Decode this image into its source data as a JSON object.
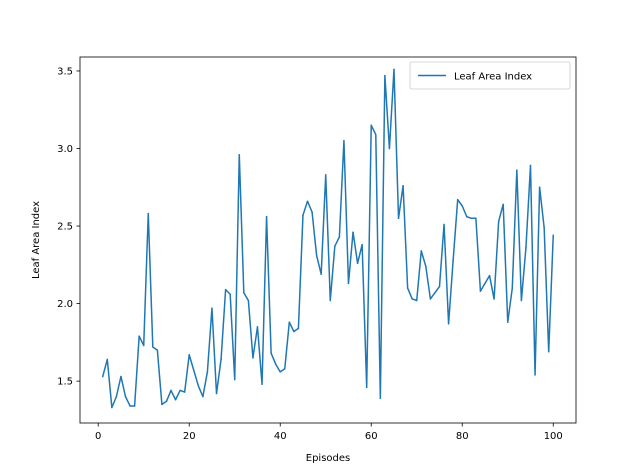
{
  "chart_data": {
    "type": "line",
    "title": "",
    "xlabel": "Episodes",
    "ylabel": "Leaf Area Index",
    "xlim": [
      -4,
      105
    ],
    "ylim": [
      1.23,
      3.59
    ],
    "xticks": [
      0,
      20,
      40,
      60,
      80,
      100
    ],
    "yticks": [
      1.5,
      2.0,
      2.5,
      3.0,
      3.5
    ],
    "xtick_labels": [
      "0",
      "20",
      "40",
      "60",
      "80",
      "100"
    ],
    "ytick_labels": [
      "1.5",
      "2.0",
      "2.5",
      "3.0",
      "3.5"
    ],
    "grid": false,
    "legend_position": "top-right",
    "series": [
      {
        "name": "Leaf Area Index",
        "color": "#1f77b4",
        "x": [
          1,
          2,
          3,
          4,
          5,
          6,
          7,
          8,
          9,
          10,
          11,
          12,
          13,
          14,
          15,
          16,
          17,
          18,
          19,
          20,
          21,
          22,
          23,
          24,
          25,
          26,
          27,
          28,
          29,
          30,
          31,
          32,
          33,
          34,
          35,
          36,
          37,
          38,
          39,
          40,
          41,
          42,
          43,
          44,
          45,
          46,
          47,
          48,
          49,
          50,
          51,
          52,
          53,
          54,
          55,
          56,
          57,
          58,
          59,
          60,
          61,
          62,
          63,
          64,
          65,
          66,
          67,
          68,
          69,
          70,
          71,
          72,
          73,
          74,
          75,
          76,
          77,
          78,
          79,
          80,
          81,
          82,
          83,
          84,
          85,
          86,
          87,
          88,
          89,
          90,
          91,
          92,
          93,
          94,
          95,
          96,
          97,
          98,
          99,
          100
        ],
        "values": [
          1.53,
          1.64,
          1.33,
          1.4,
          1.53,
          1.4,
          1.34,
          1.34,
          1.79,
          1.73,
          2.58,
          1.72,
          1.7,
          1.35,
          1.37,
          1.44,
          1.38,
          1.44,
          1.43,
          1.67,
          1.57,
          1.47,
          1.4,
          1.56,
          1.97,
          1.42,
          1.64,
          2.09,
          2.06,
          1.51,
          2.96,
          2.07,
          2.02,
          1.65,
          1.85,
          1.48,
          2.56,
          1.68,
          1.61,
          1.56,
          1.58,
          1.88,
          1.82,
          1.84,
          2.57,
          2.66,
          2.59,
          2.31,
          2.19,
          2.83,
          2.02,
          2.37,
          2.43,
          3.05,
          2.13,
          2.46,
          2.26,
          2.38,
          1.46,
          3.15,
          3.09,
          1.39,
          3.47,
          3.0,
          3.51,
          2.55,
          2.76,
          2.1,
          2.03,
          2.02,
          2.34,
          2.24,
          2.03,
          2.07,
          2.11,
          2.51,
          1.87,
          2.28,
          2.67,
          2.63,
          2.56,
          2.55,
          2.55,
          2.08,
          2.13,
          2.18,
          2.03,
          2.53,
          2.64,
          1.88,
          2.1,
          2.86,
          2.02,
          2.36,
          2.89,
          1.54,
          2.75,
          2.49,
          1.69,
          2.44
        ]
      }
    ]
  }
}
